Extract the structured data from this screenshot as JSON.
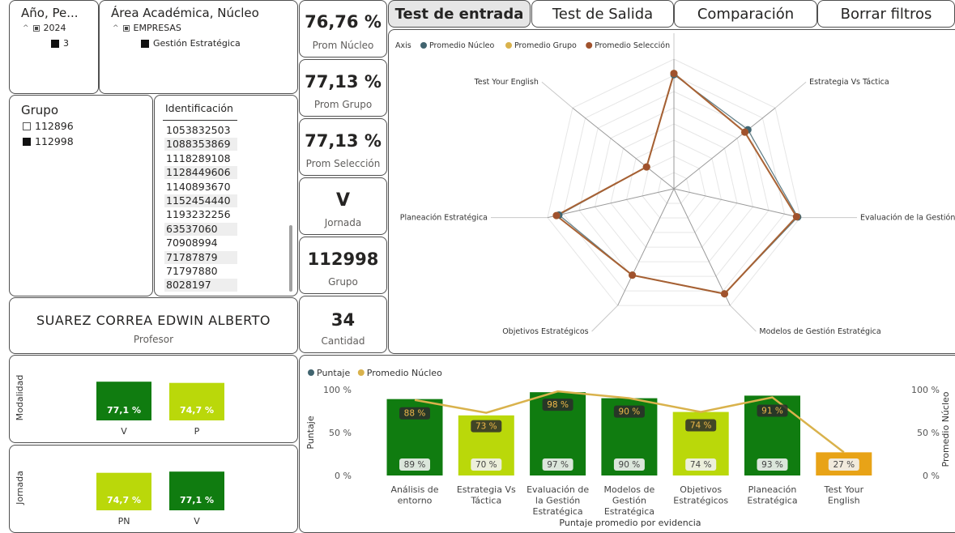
{
  "filters": {
    "year_slicer": {
      "title": "Año, Pe...",
      "items": [
        {
          "label": "2024",
          "level": 0
        },
        {
          "label": "3",
          "level": 1
        }
      ]
    },
    "area_slicer": {
      "title": "Área Académica, Núcleo",
      "items": [
        {
          "label": "EMPRESAS",
          "level": 0
        },
        {
          "label": "Gestión Estratégica",
          "level": 1
        }
      ]
    },
    "group_slicer": {
      "title": "Grupo",
      "items": [
        {
          "label": "112896",
          "checked": false
        },
        {
          "label": "112998",
          "checked": true
        }
      ]
    },
    "id_slicer": {
      "title": "Identificación",
      "items": [
        "1053832503",
        "1088353869",
        "1118289108",
        "1128449606",
        "1140893670",
        "1152454440",
        "1193232256",
        "63537060",
        "70908994",
        "71787879",
        "71797880",
        "8028197"
      ]
    }
  },
  "teacher": {
    "name": "SUAREZ CORREA EDWIN ALBERTO",
    "label": "Profesor"
  },
  "cards": {
    "prom_nucleo": {
      "value": "76,76 %",
      "label": "Prom Núcleo"
    },
    "prom_grupo": {
      "value": "77,13 %",
      "label": "Prom Grupo"
    },
    "prom_seleccion": {
      "value": "77,13 %",
      "label": "Prom Selección"
    },
    "jornada": {
      "value": "V",
      "label": "Jornada"
    },
    "grupo": {
      "value": "112998",
      "label": "Grupo"
    },
    "cantidad": {
      "value": "34",
      "label": "Cantidad"
    }
  },
  "tabs": [
    {
      "label": "Test de entrada",
      "active": true
    },
    {
      "label": "Test de Salida",
      "active": false
    },
    {
      "label": "Comparación",
      "active": false
    },
    {
      "label": "Borrar filtros",
      "active": false
    }
  ],
  "colors": {
    "dark_green": "#107c10",
    "lime": "#bad80a",
    "orange": "#e8a317",
    "gold": "#d9b24c",
    "teal": "#41646f",
    "brown": "#a0522d"
  },
  "chart_data": [
    {
      "type": "radar",
      "legend_title": "Axis",
      "legend_position": "top-left",
      "axes": [
        "Análisis de entorno",
        "Estrategia Vs Táctica",
        "Evaluación de la Gestión Estraté...",
        "Modelos de Gestión Estratégica",
        "Objetivos Estratégicos",
        "Planeación Estratégica",
        "Test Your English"
      ],
      "range": [
        0,
        100
      ],
      "series": [
        {
          "name": "Promedio Núcleo",
          "values": [
            88,
            73,
            98,
            90,
            74,
            91,
            27
          ],
          "color": "#41646f"
        },
        {
          "name": "Promedio Grupo",
          "values": [
            89,
            70,
            97,
            90,
            74,
            93,
            27
          ],
          "color": "#d9b24c"
        },
        {
          "name": "Promedio Selección",
          "values": [
            89,
            70,
            97,
            90,
            74,
            93,
            27
          ],
          "color": "#a0522d"
        }
      ]
    },
    {
      "type": "bar",
      "title": "Modalidad",
      "categories": [
        "V",
        "P"
      ],
      "values": [
        77.1,
        74.7
      ],
      "labels": [
        "77,1 %",
        "74,7 %"
      ],
      "colors": [
        "#107c10",
        "#bad80a"
      ],
      "ylim": [
        0,
        100
      ]
    },
    {
      "type": "bar",
      "title": "Jornada",
      "categories": [
        "PN",
        "V"
      ],
      "values": [
        74.7,
        77.1
      ],
      "labels": [
        "74,7 %",
        "77,1 %"
      ],
      "colors": [
        "#bad80a",
        "#107c10"
      ],
      "ylim": [
        0,
        100
      ]
    },
    {
      "type": "bar+line",
      "xlabel": "Puntaje promedio por evidencia",
      "ylabel": "Puntaje",
      "y2label": "Promedio Núcleo",
      "ylim": [
        0,
        100
      ],
      "y_ticks": [
        "100 %",
        "50 %",
        "0 %"
      ],
      "legend": [
        {
          "name": "Puntaje",
          "color": "#41646f"
        },
        {
          "name": "Promedio Núcleo",
          "color": "#d9b24c"
        }
      ],
      "categories": [
        "Análisis de entorno",
        "Estrategia Vs Táctica",
        "Evaluación de la Gestión Estratégica",
        "Modelos de Gestión Estratégica",
        "Objetivos Estratégicos",
        "Planeación Estratégica",
        "Test Your English"
      ],
      "bars": {
        "name": "Puntaje",
        "values": [
          89,
          70,
          97,
          90,
          74,
          93,
          27
        ],
        "labels": [
          "89 %",
          "70 %",
          "97 %",
          "90 %",
          "74 %",
          "93 %",
          "27 %"
        ],
        "colors": [
          "#107c10",
          "#bad80a",
          "#107c10",
          "#107c10",
          "#bad80a",
          "#107c10",
          "#e8a317"
        ]
      },
      "line": {
        "name": "Promedio Núcleo",
        "values": [
          88,
          73,
          98,
          90,
          74,
          91,
          27
        ],
        "labels": [
          "88 %",
          "73 %",
          "98 %",
          "90 %",
          "74 %",
          "91 %",
          ""
        ]
      }
    }
  ]
}
